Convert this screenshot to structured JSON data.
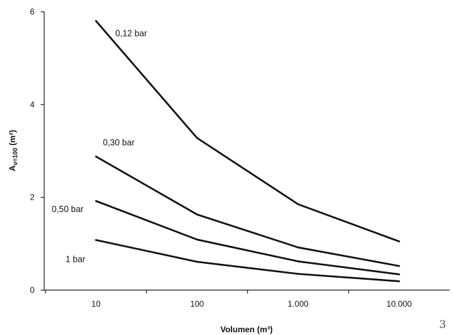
{
  "chart_data": {
    "type": "line",
    "xlabel": "Volumen (m³)",
    "ylabel": "Av=100 (m²)",
    "ylabel_parts": {
      "main": "A",
      "sub": "v=100",
      "unit": " (m²)"
    },
    "x_scale": "log",
    "xlim": [
      10,
      10000
    ],
    "ylim": [
      0,
      6
    ],
    "x_ticks": [
      10,
      100,
      1000,
      10000
    ],
    "x_tick_labels": [
      "10",
      "100",
      "1.000",
      "10.000"
    ],
    "y_ticks": [
      0,
      2,
      4,
      6
    ],
    "y_tick_labels": [
      "0",
      "2",
      "4",
      "6"
    ],
    "grid": false,
    "legend": "none",
    "series": [
      {
        "name": "0,12 bar",
        "x": [
          10,
          100,
          1000,
          10000
        ],
        "y": [
          5.8,
          3.28,
          1.85,
          1.05
        ]
      },
      {
        "name": "0,30 bar",
        "x": [
          10,
          100,
          1000,
          10000
        ],
        "y": [
          2.88,
          1.63,
          0.92,
          0.52
        ]
      },
      {
        "name": "0,50 bar",
        "x": [
          10,
          100,
          1000,
          10000
        ],
        "y": [
          1.92,
          1.09,
          0.62,
          0.34
        ]
      },
      {
        "name": "1 bar",
        "x": [
          10,
          100,
          1000,
          10000
        ],
        "y": [
          1.08,
          0.61,
          0.35,
          0.19
        ]
      }
    ],
    "line_color": "#111111"
  },
  "page_number": "3"
}
